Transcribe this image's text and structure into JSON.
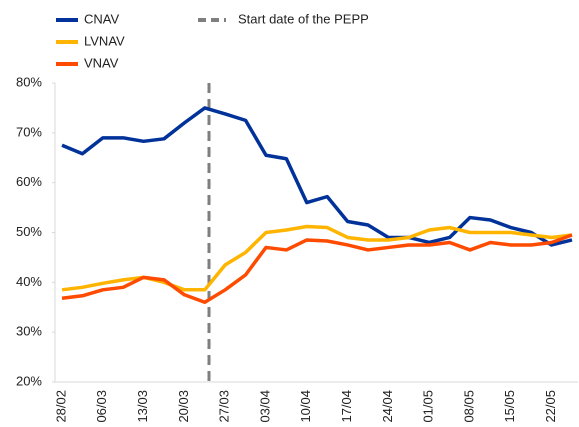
{
  "chart_data": {
    "type": "line",
    "annotation": "Start date of the PEPP",
    "categories": [
      "28/02",
      null,
      "06/03",
      null,
      "13/03",
      null,
      "20/03",
      null,
      "27/03",
      null,
      "03/04",
      null,
      "10/04",
      null,
      "17/04",
      null,
      "24/04",
      null,
      "01/05",
      null,
      "08/05",
      null,
      "15/05",
      null,
      "22/05",
      null
    ],
    "series": [
      {
        "name": "CNAV",
        "color": "#003299",
        "values": [
          67.5,
          65.8,
          69,
          69,
          68.3,
          68.8,
          72,
          75,
          73.8,
          72.5,
          65.5,
          64.8,
          56,
          57.2,
          52.2,
          51.5,
          49,
          49,
          48,
          49,
          53,
          52.5,
          51,
          50,
          47.5,
          48.5
        ]
      },
      {
        "name": "LVNAV",
        "color": "#ffb400",
        "values": [
          38.5,
          39,
          39.8,
          40.5,
          41,
          40,
          38.5,
          38.5,
          43.5,
          46,
          50,
          50.5,
          51.2,
          51,
          49,
          48.5,
          48.5,
          49,
          50.5,
          51,
          50,
          50,
          50,
          49.5,
          49,
          49.5
        ]
      },
      {
        "name": "VNAV",
        "color": "#ff4b00",
        "values": [
          36.8,
          37.3,
          38.5,
          39,
          41,
          40.5,
          37.5,
          36,
          38.5,
          41.5,
          47,
          46.5,
          48.5,
          48.3,
          47.5,
          46.5,
          47,
          47.5,
          47.5,
          48,
          46.5,
          48,
          47.5,
          47.5,
          48,
          49.5
        ]
      }
    ],
    "ylim": [
      20,
      80
    ],
    "yticks": [
      {
        "value": 20,
        "label": "20%"
      },
      {
        "value": 30,
        "label": "30%"
      },
      {
        "value": 40,
        "label": "40%"
      },
      {
        "value": 50,
        "label": "50%"
      },
      {
        "value": 60,
        "label": "60%"
      },
      {
        "value": 70,
        "label": "70%"
      },
      {
        "value": 80,
        "label": "80%"
      }
    ],
    "grid": false
  }
}
